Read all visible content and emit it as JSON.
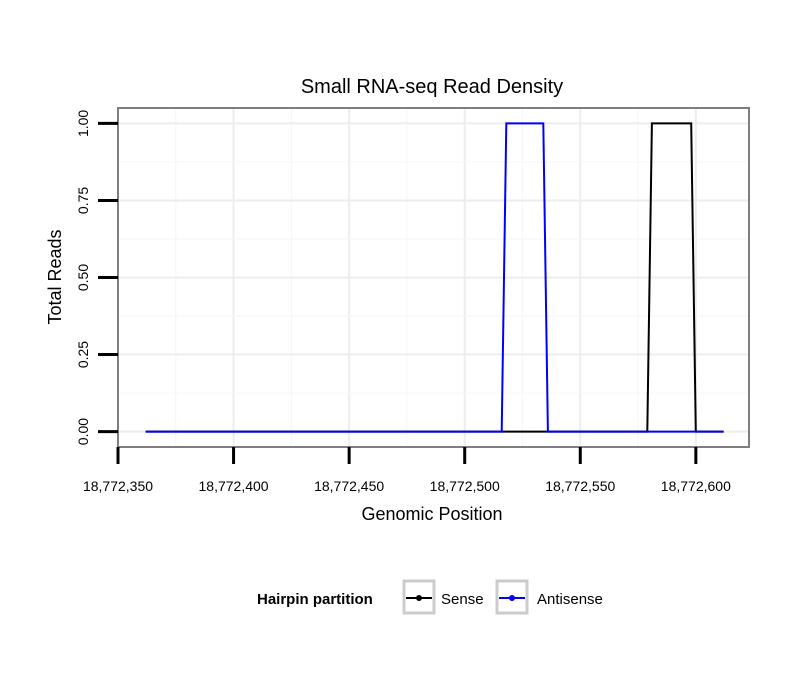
{
  "chart_data": {
    "type": "line",
    "title": "Small RNA-seq Read Density",
    "xlabel": "Genomic Position",
    "ylabel": "Total Reads",
    "xlim": [
      18772350,
      18772623
    ],
    "ylim": [
      -0.05,
      1.05
    ],
    "x_ticks": [
      18772350,
      18772400,
      18772450,
      18772500,
      18772550,
      18772600
    ],
    "x_tick_labels": [
      "18,772,350",
      "18,772,400",
      "18,772,450",
      "18,772,500",
      "18,772,550",
      "18,772,600"
    ],
    "y_ticks": [
      0,
      0.25,
      0.5,
      0.75,
      1.0
    ],
    "y_tick_labels": [
      "0.00",
      "0.25",
      "0.50",
      "0.75",
      "1.00"
    ],
    "grid": true,
    "legend": {
      "title": "Hairpin partition",
      "placement": "bottom",
      "entries": [
        "Sense",
        "Antisense"
      ]
    },
    "series": [
      {
        "name": "Sense",
        "color": "#000000",
        "x": [
          18772362,
          18772579,
          18772581,
          18772598,
          18772600,
          18772612
        ],
        "y": [
          0,
          0,
          1,
          1,
          0,
          0
        ]
      },
      {
        "name": "Antisense",
        "color": "#0000ff",
        "x": [
          18772362,
          18772516,
          18772518,
          18772534,
          18772536,
          18772612
        ],
        "y": [
          0,
          0,
          1,
          1,
          0,
          0
        ]
      }
    ]
  }
}
